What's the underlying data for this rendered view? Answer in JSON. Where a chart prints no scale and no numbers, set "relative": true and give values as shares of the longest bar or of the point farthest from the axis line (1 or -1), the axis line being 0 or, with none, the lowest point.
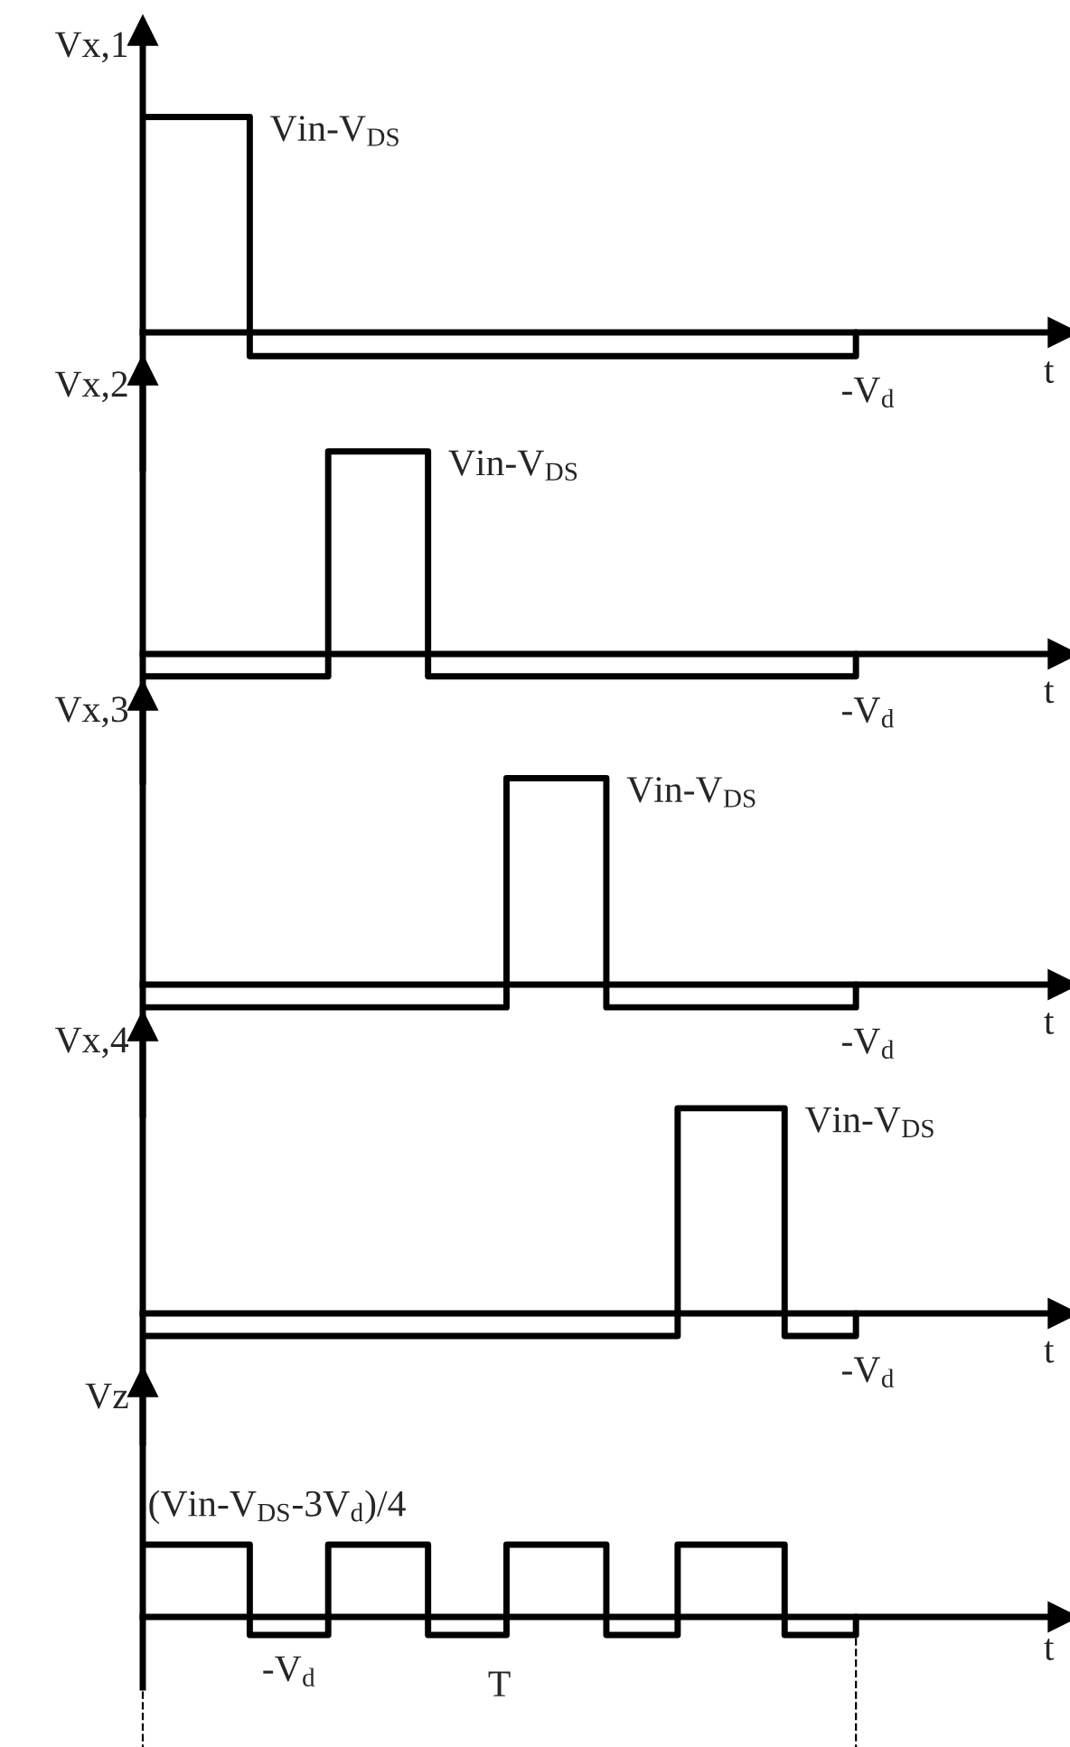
{
  "chart_data": [
    {
      "type": "step",
      "ylabel": "Vx,1",
      "xlabel": "t",
      "relative": true,
      "categories": [
        null,
        null,
        null,
        null,
        null,
        null,
        null,
        null,
        null,
        null,
        null,
        null,
        null,
        null,
        null,
        null,
        null,
        null,
        null,
        null,
        null,
        null,
        null,
        null,
        null,
        null,
        null,
        null,
        null,
        null,
        null,
        null,
        null,
        null,
        null,
        null,
        null,
        null,
        null,
        null,
        null,
        null,
        null,
        null,
        null,
        null,
        null,
        null,
        null,
        null,
        null,
        null,
        null,
        null,
        null,
        null,
        null,
        null,
        null,
        null,
        null,
        null,
        null,
        null,
        null,
        null,
        null,
        null,
        null,
        null,
        null,
        null,
        null,
        null,
        null,
        null,
        null,
        null,
        null,
        null,
        null,
        null,
        null,
        null,
        null,
        null,
        null,
        null,
        null,
        null,
        null,
        null,
        null,
        null,
        null,
        null,
        null,
        null,
        null,
        null,
        null
      ],
      "series": [
        {
          "color": "#000000",
          "values": [
            1,
            1,
            1,
            1,
            1,
            1,
            1,
            1,
            1,
            1,
            1,
            1,
            1,
            1,
            1,
            -0.11,
            -0.11,
            -0.11,
            -0.11,
            -0.11,
            -0.11,
            -0.11,
            -0.11,
            -0.11,
            -0.11,
            -0.11,
            -0.11,
            -0.11,
            -0.11,
            -0.11,
            -0.11,
            -0.11,
            -0.11,
            -0.11,
            -0.11,
            -0.11,
            -0.11,
            -0.11,
            -0.11,
            -0.11,
            -0.11,
            -0.11,
            -0.11,
            -0.11,
            -0.11,
            -0.11,
            -0.11,
            -0.11,
            -0.11,
            -0.11,
            -0.11,
            -0.11,
            -0.11,
            -0.11,
            -0.11,
            -0.11,
            -0.11,
            -0.11,
            -0.11,
            -0.11,
            -0.11,
            -0.11,
            -0.11,
            -0.11,
            -0.11,
            -0.11,
            -0.11,
            -0.11,
            -0.11,
            -0.11,
            -0.11,
            -0.11,
            -0.11,
            -0.11,
            -0.11,
            -0.11,
            -0.11,
            -0.11,
            -0.11,
            -0.11,
            -0.11,
            -0.11,
            -0.11,
            -0.11,
            -0.11,
            -0.11,
            -0.11,
            -0.11,
            -0.11,
            -0.11,
            -0.11,
            -0.11,
            -0.11,
            -0.11,
            -0.11,
            -0.11,
            -0.11,
            -0.11,
            -0.11,
            -0.11,
            0
          ]
        }
      ],
      "annotations": [
        "Vin-V$_{DS}$",
        "-V$_{d}$"
      ]
    },
    {
      "type": "step",
      "ylabel": "Vx,2",
      "xlabel": "t",
      "relative": true,
      "categories": [
        null,
        null,
        null,
        null,
        null,
        null,
        null,
        null,
        null,
        null,
        null,
        null,
        null,
        null,
        null,
        null,
        null,
        null,
        null,
        null,
        null,
        null,
        null,
        null,
        null,
        null,
        null,
        null,
        null,
        null,
        null,
        null,
        null,
        null,
        null,
        null,
        null,
        null,
        null,
        null,
        null,
        null,
        null,
        null,
        null,
        null,
        null,
        null,
        null,
        null,
        null,
        null,
        null,
        null,
        null,
        null,
        null,
        null,
        null,
        null,
        null,
        null,
        null,
        null,
        null,
        null,
        null,
        null,
        null,
        null,
        null,
        null,
        null,
        null,
        null,
        null,
        null,
        null,
        null,
        null,
        null,
        null,
        null,
        null,
        null,
        null,
        null,
        null,
        null,
        null,
        null,
        null,
        null,
        null,
        null,
        null,
        null,
        null,
        null,
        null,
        null
      ],
      "series": [
        {
          "color": "#000000",
          "values": [
            -0.11,
            -0.11,
            -0.11,
            -0.11,
            -0.11,
            -0.11,
            -0.11,
            -0.11,
            -0.11,
            -0.11,
            -0.11,
            -0.11,
            -0.11,
            -0.11,
            -0.11,
            -0.11,
            -0.11,
            -0.11,
            -0.11,
            -0.11,
            -0.11,
            -0.11,
            -0.11,
            -0.11,
            -0.11,
            -0.11,
            1,
            1,
            1,
            1,
            1,
            1,
            1,
            1,
            1,
            1,
            1,
            1,
            1,
            1,
            -0.11,
            -0.11,
            -0.11,
            -0.11,
            -0.11,
            -0.11,
            -0.11,
            -0.11,
            -0.11,
            -0.11,
            -0.11,
            -0.11,
            -0.11,
            -0.11,
            -0.11,
            -0.11,
            -0.11,
            -0.11,
            -0.11,
            -0.11,
            -0.11,
            -0.11,
            -0.11,
            -0.11,
            -0.11,
            -0.11,
            -0.11,
            -0.11,
            -0.11,
            -0.11,
            -0.11,
            -0.11,
            -0.11,
            -0.11,
            -0.11,
            -0.11,
            -0.11,
            -0.11,
            -0.11,
            -0.11,
            -0.11,
            -0.11,
            -0.11,
            -0.11,
            -0.11,
            -0.11,
            -0.11,
            -0.11,
            -0.11,
            -0.11,
            -0.11,
            -0.11,
            -0.11,
            -0.11,
            -0.11,
            -0.11,
            -0.11,
            -0.11,
            -0.11,
            -0.11,
            0
          ]
        }
      ],
      "annotations": [
        "Vin-V$_{DS}$",
        "-V$_{d}$"
      ]
    },
    {
      "type": "step",
      "ylabel": "Vx,3",
      "xlabel": "t",
      "relative": true,
      "categories": [
        null,
        null,
        null,
        null,
        null,
        null,
        null,
        null,
        null,
        null,
        null,
        null,
        null,
        null,
        null,
        null,
        null,
        null,
        null,
        null,
        null,
        null,
        null,
        null,
        null,
        null,
        null,
        null,
        null,
        null,
        null,
        null,
        null,
        null,
        null,
        null,
        null,
        null,
        null,
        null,
        null,
        null,
        null,
        null,
        null,
        null,
        null,
        null,
        null,
        null,
        null,
        null,
        null,
        null,
        null,
        null,
        null,
        null,
        null,
        null,
        null,
        null,
        null,
        null,
        null,
        null,
        null,
        null,
        null,
        null,
        null,
        null,
        null,
        null,
        null,
        null,
        null,
        null,
        null,
        null,
        null,
        null,
        null,
        null,
        null,
        null,
        null,
        null,
        null,
        null,
        null,
        null,
        null,
        null,
        null,
        null,
        null,
        null,
        null,
        null,
        null
      ],
      "series": [
        {
          "color": "#000000",
          "values": [
            -0.11,
            -0.11,
            -0.11,
            -0.11,
            -0.11,
            -0.11,
            -0.11,
            -0.11,
            -0.11,
            -0.11,
            -0.11,
            -0.11,
            -0.11,
            -0.11,
            -0.11,
            -0.11,
            -0.11,
            -0.11,
            -0.11,
            -0.11,
            -0.11,
            -0.11,
            -0.11,
            -0.11,
            -0.11,
            -0.11,
            -0.11,
            -0.11,
            -0.11,
            -0.11,
            -0.11,
            -0.11,
            -0.11,
            -0.11,
            -0.11,
            -0.11,
            -0.11,
            -0.11,
            -0.11,
            -0.11,
            -0.11,
            -0.11,
            -0.11,
            -0.11,
            -0.11,
            -0.11,
            -0.11,
            -0.11,
            -0.11,
            -0.11,
            -0.11,
            1,
            1,
            1,
            1,
            1,
            1,
            1,
            1,
            1,
            1,
            1,
            1,
            1,
            1,
            -0.11,
            -0.11,
            -0.11,
            -0.11,
            -0.11,
            -0.11,
            -0.11,
            -0.11,
            -0.11,
            -0.11,
            -0.11,
            -0.11,
            -0.11,
            -0.11,
            -0.11,
            -0.11,
            -0.11,
            -0.11,
            -0.11,
            -0.11,
            -0.11,
            -0.11,
            -0.11,
            -0.11,
            -0.11,
            -0.11,
            -0.11,
            -0.11,
            -0.11,
            -0.11,
            -0.11,
            -0.11,
            -0.11,
            -0.11,
            -0.11,
            0
          ]
        }
      ],
      "annotations": [
        "Vin-V$_{DS}$",
        "-V$_{d}$"
      ]
    },
    {
      "type": "step",
      "ylabel": "Vx,4",
      "xlabel": "t",
      "relative": true,
      "categories": [
        null,
        null,
        null,
        null,
        null,
        null,
        null,
        null,
        null,
        null,
        null,
        null,
        null,
        null,
        null,
        null,
        null,
        null,
        null,
        null,
        null,
        null,
        null,
        null,
        null,
        null,
        null,
        null,
        null,
        null,
        null,
        null,
        null,
        null,
        null,
        null,
        null,
        null,
        null,
        null,
        null,
        null,
        null,
        null,
        null,
        null,
        null,
        null,
        null,
        null,
        null,
        null,
        null,
        null,
        null,
        null,
        null,
        null,
        null,
        null,
        null,
        null,
        null,
        null,
        null,
        null,
        null,
        null,
        null,
        null,
        null,
        null,
        null,
        null,
        null,
        null,
        null,
        null,
        null,
        null,
        null,
        null,
        null,
        null,
        null,
        null,
        null,
        null,
        null,
        null,
        null,
        null,
        null,
        null,
        null,
        null,
        null,
        null,
        null,
        null,
        null
      ],
      "series": [
        {
          "color": "#000000",
          "values": [
            -0.11,
            -0.11,
            -0.11,
            -0.11,
            -0.11,
            -0.11,
            -0.11,
            -0.11,
            -0.11,
            -0.11,
            -0.11,
            -0.11,
            -0.11,
            -0.11,
            -0.11,
            -0.11,
            -0.11,
            -0.11,
            -0.11,
            -0.11,
            -0.11,
            -0.11,
            -0.11,
            -0.11,
            -0.11,
            -0.11,
            -0.11,
            -0.11,
            -0.11,
            -0.11,
            -0.11,
            -0.11,
            -0.11,
            -0.11,
            -0.11,
            -0.11,
            -0.11,
            -0.11,
            -0.11,
            -0.11,
            -0.11,
            -0.11,
            -0.11,
            -0.11,
            -0.11,
            -0.11,
            -0.11,
            -0.11,
            -0.11,
            -0.11,
            -0.11,
            -0.11,
            -0.11,
            -0.11,
            -0.11,
            -0.11,
            -0.11,
            -0.11,
            -0.11,
            -0.11,
            -0.11,
            -0.11,
            -0.11,
            -0.11,
            -0.11,
            -0.11,
            -0.11,
            -0.11,
            -0.11,
            -0.11,
            -0.11,
            -0.11,
            -0.11,
            -0.11,
            -0.11,
            1,
            1,
            1,
            1,
            1,
            1,
            1,
            1,
            1,
            1,
            1,
            1,
            1,
            1,
            1,
            -0.11,
            -0.11,
            -0.11,
            -0.11,
            -0.11,
            -0.11,
            -0.11,
            -0.11,
            -0.11,
            -0.11,
            0
          ]
        }
      ],
      "annotations": [
        "Vin-V$_{DS}$",
        "-V$_{d}$"
      ]
    },
    {
      "type": "step",
      "ylabel": "Vz",
      "xlabel": "t",
      "relative": true,
      "categories": [
        null,
        null,
        null,
        null,
        null,
        null,
        null,
        null,
        null,
        null,
        null,
        null,
        null,
        null,
        null,
        null,
        null,
        null,
        null,
        null,
        null,
        null,
        null,
        null,
        null,
        null,
        null,
        null,
        null,
        null,
        null,
        null,
        null,
        null,
        null,
        null,
        null,
        null,
        null,
        null,
        null,
        null,
        null,
        null,
        null,
        null,
        null,
        null,
        null,
        null,
        null,
        null,
        null,
        null,
        null,
        null,
        null,
        null,
        null,
        null,
        null,
        null,
        null,
        null,
        null,
        null,
        null,
        null,
        null,
        null,
        null,
        null,
        null,
        null,
        null,
        null,
        null,
        null,
        null,
        null,
        null,
        null,
        null,
        null,
        null,
        null,
        null,
        null,
        null,
        null,
        null,
        null,
        null,
        null,
        null,
        null,
        null,
        null,
        null,
        null,
        null
      ],
      "series": [
        {
          "color": "#000000",
          "values": [
            1,
            1,
            1,
            1,
            1,
            1,
            1,
            1,
            1,
            1,
            1,
            1,
            1,
            1,
            1,
            -0.25,
            -0.25,
            -0.25,
            -0.25,
            -0.25,
            -0.25,
            -0.25,
            -0.25,
            -0.25,
            -0.25,
            -0.25,
            1,
            1,
            1,
            1,
            1,
            1,
            1,
            1,
            1,
            1,
            1,
            1,
            1,
            1,
            -0.25,
            -0.25,
            -0.25,
            -0.25,
            -0.25,
            -0.25,
            -0.25,
            -0.25,
            -0.25,
            -0.25,
            -0.25,
            1,
            1,
            1,
            1,
            1,
            1,
            1,
            1,
            1,
            1,
            1,
            1,
            1,
            1,
            -0.25,
            -0.25,
            -0.25,
            -0.25,
            -0.25,
            -0.25,
            -0.25,
            -0.25,
            -0.25,
            -0.25,
            1,
            1,
            1,
            1,
            1,
            1,
            1,
            1,
            1,
            1,
            1,
            1,
            1,
            1,
            1,
            -0.25,
            -0.25,
            -0.25,
            -0.25,
            -0.25,
            -0.25,
            -0.25,
            -0.25,
            -0.25,
            -0.25,
            0
          ]
        }
      ],
      "annotations": [
        "(Vin-V$_{DS}$-3V$_{d}$)/4",
        "-V$_{d}$",
        "T"
      ]
    }
  ]
}
